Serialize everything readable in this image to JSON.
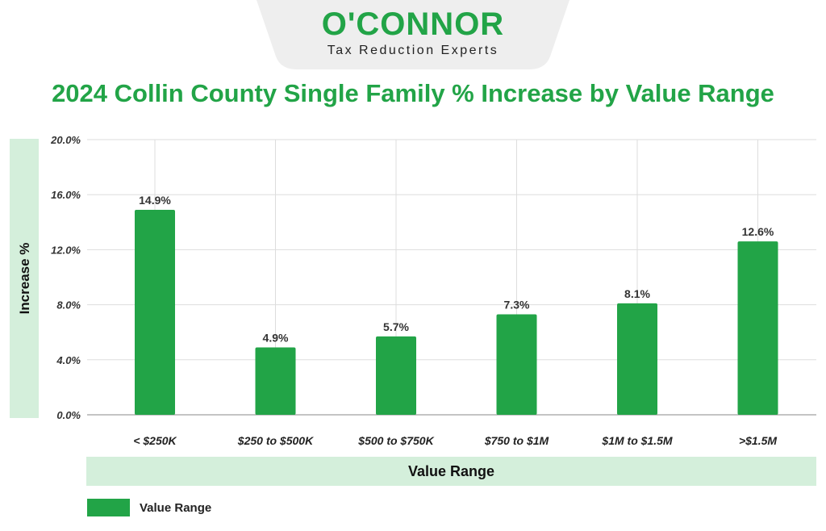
{
  "brand": {
    "name": "O'CONNOR",
    "tagline": "Tax Reduction Experts"
  },
  "colors": {
    "brand_green": "#22a447",
    "bar_green": "#22a447",
    "label_bg": "#d4efdb",
    "logo_tab_bg": "#eeeeee",
    "grid": "#dddddd"
  },
  "chart_data": {
    "type": "bar",
    "title": "2024 Collin County Single Family % Increase by Value Range",
    "xlabel": "Value Range",
    "ylabel": "Increase %",
    "ylim": [
      0,
      20
    ],
    "yticks": [
      "0.0%",
      "4.0%",
      "8.0%",
      "12.0%",
      "16.0%",
      "20.0%"
    ],
    "categories": [
      "< $250K",
      "$250 to $500K",
      "$500 to $750K",
      "$750 to $1M",
      "$1M to $1.5M",
      ">$1.5M"
    ],
    "series": [
      {
        "name": "Value Range",
        "values": [
          14.9,
          4.9,
          5.7,
          7.3,
          8.1,
          12.6
        ],
        "labels": [
          "14.9%",
          "4.9%",
          "5.7%",
          "7.3%",
          "8.1%",
          "12.6%"
        ]
      }
    ],
    "grid": true,
    "legend": "bottom-left"
  }
}
